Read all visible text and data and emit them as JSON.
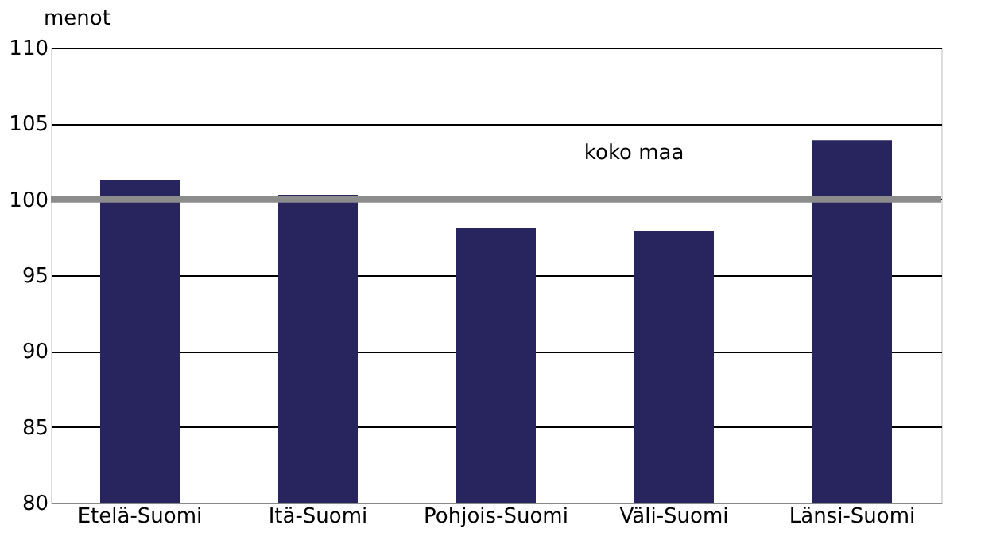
{
  "chart_data": {
    "type": "bar",
    "ylabel": "menot",
    "categories": [
      "Etelä-Suomi",
      "Itä-Suomi",
      "Pohjois-Suomi",
      "Väli-Suomi",
      "Länsi-Suomi"
    ],
    "values": [
      101.3,
      100.3,
      98.1,
      97.9,
      103.9
    ],
    "color": "#27245e",
    "ylim": [
      80,
      110
    ],
    "yticks": [
      80,
      85,
      90,
      95,
      100,
      105,
      110
    ],
    "grid": "y",
    "ref_lines": [
      {
        "axis": "y",
        "value": 100,
        "label": "koko maa",
        "color": "#8c8c8c"
      }
    ]
  }
}
